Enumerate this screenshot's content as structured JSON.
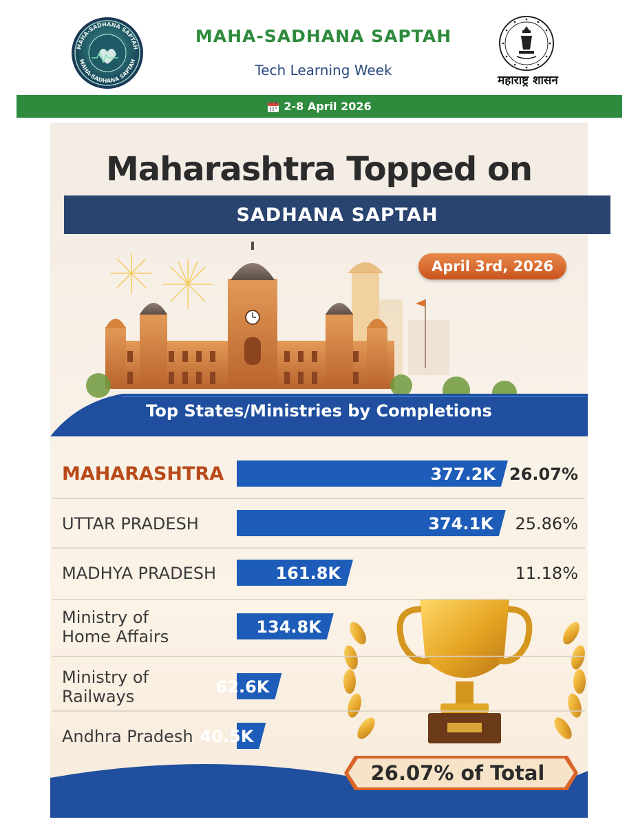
{
  "header": {
    "title": "MAHA-SADHANA SAPTAH",
    "subtitle": "Tech Learning Week",
    "date_range": "2-8 April 2026",
    "logo_left_text_top": "MAHA-SADHANA SAPTAH",
    "logo_left_text_bottom": "MAHA-SADHANA SAPTAH",
    "emblem_caption": "महाराष्ट्र शासन"
  },
  "poster": {
    "headline": "Maharashtra Topped on",
    "ribbon": "SADHANA SAPTAH",
    "date_badge": "April 3rd, 2026",
    "total_badge": "26.07% of Total"
  },
  "colors": {
    "green": "#2e8b3d",
    "navy": "#2a4470",
    "bar_blue": "#1d5cb8",
    "highlight_orange": "#b94a19",
    "orange_badge": "#d8652a"
  },
  "chart_data": {
    "type": "bar",
    "orientation": "horizontal",
    "title": "Top States/Ministries by Completions",
    "categories": [
      "MAHARASHTRA",
      "UTTAR PRADESH",
      "MADHYA PRADESH",
      "Ministry of Home Affairs",
      "Ministry of Railways",
      "Andhra Pradesh"
    ],
    "category_lines": [
      [
        "MAHARASHTRA"
      ],
      [
        "UTTAR PRADESH"
      ],
      [
        "MADHYA PRADESH"
      ],
      [
        "Ministry of",
        "Home Affairs"
      ],
      [
        "Ministry of",
        "Railways"
      ],
      [
        "Andhra Pradesh"
      ]
    ],
    "values": [
      377.2,
      374.1,
      161.8,
      134.8,
      62.6,
      40.5
    ],
    "value_labels": [
      "377.2K",
      "374.1K",
      "161.8K",
      "134.8K",
      "62.6K",
      "40.5K"
    ],
    "percent_labels": [
      "26.07%",
      "25.86%",
      "11.18%",
      "",
      "",
      ""
    ],
    "highlight_index": 0,
    "unit": "K"
  }
}
